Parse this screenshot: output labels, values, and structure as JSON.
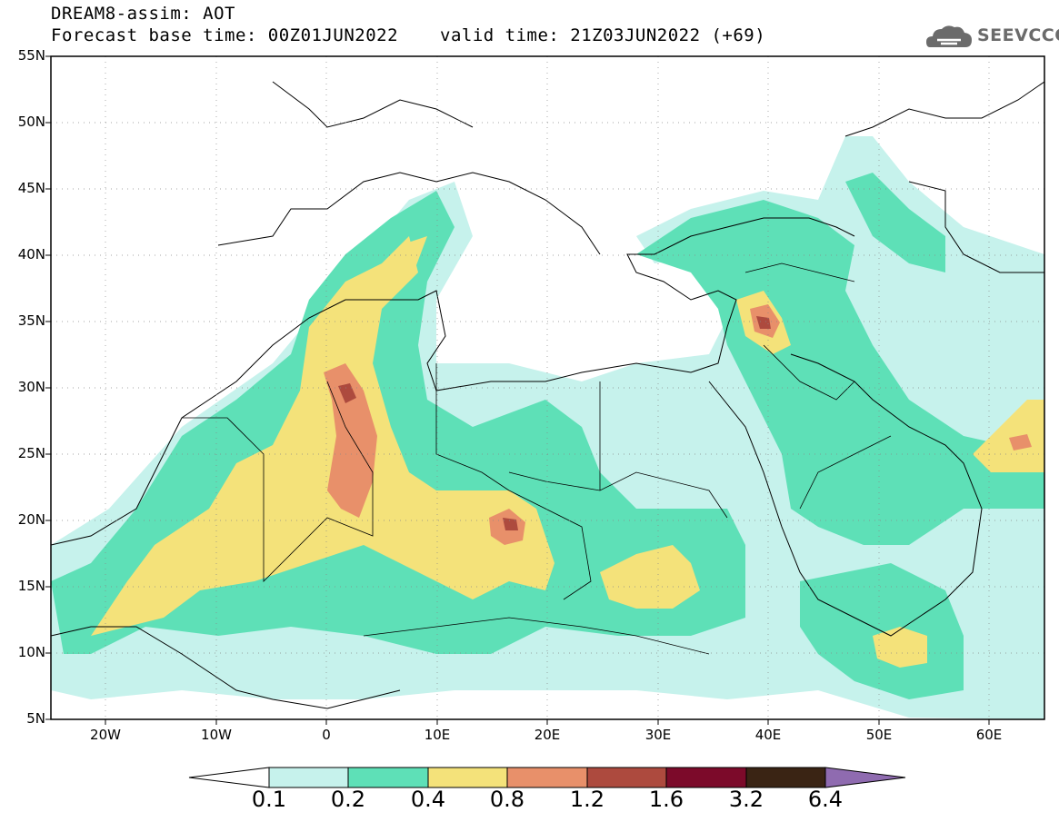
{
  "title": {
    "line1": "DREAM8-assim: AOT",
    "line2": "Forecast base time: 00Z01JUN2022",
    "valid": "valid time: 21Z03JUN2022 (+69)"
  },
  "logo": {
    "text": "SEEVCCC",
    "icon": "cloud-icon"
  },
  "axes": {
    "lat_labels": [
      "55N",
      "50N",
      "45N",
      "40N",
      "35N",
      "30N",
      "25N",
      "20N",
      "15N",
      "10N",
      "5N"
    ],
    "lon_labels": [
      "20W",
      "10W",
      "0",
      "10E",
      "20E",
      "30E",
      "40E",
      "50E",
      "60E"
    ]
  },
  "colorbar": {
    "labels": [
      "0.1",
      "0.2",
      "0.4",
      "0.8",
      "1.2",
      "1.6",
      "3.2",
      "6.4"
    ],
    "colors": [
      "#ffffff",
      "#c6f2ec",
      "#5ee0b7",
      "#f4e27a",
      "#e8906a",
      "#ad4a3e",
      "#7c0a2a",
      "#3a2414",
      "#8f6bb0"
    ]
  },
  "colors": {
    "c1": "#c6f2ec",
    "c2": "#5ee0b7",
    "c3": "#f4e27a",
    "c4": "#e8906a",
    "c5": "#ad4a3e"
  }
}
